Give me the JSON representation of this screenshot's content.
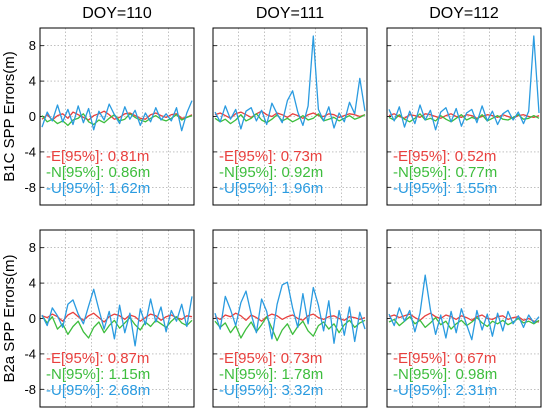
{
  "colors": {
    "E": "#e8403e",
    "N": "#3dbd3d",
    "U": "#2a9be0"
  },
  "chart_data": {
    "type": "line",
    "grid": true,
    "columns": [
      "DOY=110",
      "DOY=111",
      "DOY=112"
    ],
    "rows": [
      "B1C SPP Errors(m)",
      "B2a SPP Errors(m)"
    ],
    "ylim": [
      -10,
      10
    ],
    "yticks": [
      "8",
      "4",
      "0",
      "-4",
      "-8"
    ],
    "ytick_values": [
      8,
      4,
      0,
      -4,
      -8
    ],
    "series_names": [
      "E",
      "N",
      "U"
    ],
    "panels": [
      {
        "row": 0,
        "col": 0,
        "stats": [
          "-E[95%]: 0.81m",
          "-N[95%]: 0.86m",
          "-U[95%]: 1.62m"
        ],
        "series": [
          {
            "name": "E",
            "values": [
              -0.3,
              0.2,
              -0.4,
              0.1,
              0.3,
              -0.2,
              0.5,
              0.2,
              -0.1,
              -0.4,
              0.1,
              0.3,
              0.6,
              0.2,
              -0.3,
              -0.1,
              0.3,
              0.4,
              0.1,
              -0.2,
              -0.3,
              0.2,
              0.4,
              0.1,
              -0.1,
              0.2,
              0.3,
              -0.2,
              -0.1,
              0.2
            ]
          },
          {
            "name": "N",
            "values": [
              0.1,
              -0.6,
              -0.3,
              -0.8,
              -0.5,
              -1.0,
              -0.4,
              -0.2,
              0.3,
              -0.6,
              -0.9,
              -0.4,
              -0.7,
              -0.2,
              0.2,
              -0.5,
              -0.3,
              0.3,
              -0.1,
              -0.4,
              -0.6,
              -0.2,
              0.1,
              -0.3,
              -0.5,
              -0.2,
              0.2,
              -0.4,
              -0.1,
              0.1
            ]
          },
          {
            "name": "U",
            "values": [
              -1.2,
              0.5,
              -0.5,
              1.3,
              -0.6,
              0.8,
              -0.9,
              1.2,
              -0.7,
              0.9,
              -1.5,
              0.6,
              -0.4,
              1.4,
              0.2,
              -0.8,
              1.1,
              -0.3,
              0.7,
              -1.0,
              0.4,
              -0.6,
              1.0,
              -0.4,
              0.3,
              -0.5,
              1.0,
              -1.6,
              0.4,
              1.8
            ]
          }
        ]
      },
      {
        "row": 0,
        "col": 1,
        "stats": [
          "-E[95%]: 0.73m",
          "-N[95%]: 0.92m",
          "-U[95%]: 1.96m"
        ],
        "series": [
          {
            "name": "E",
            "values": [
              0.2,
              0.4,
              0.1,
              -0.2,
              0.3,
              0.5,
              0.2,
              -0.1,
              0.3,
              0.6,
              0.2,
              0.0,
              0.4,
              0.2,
              -0.1,
              0.3,
              0.1,
              -0.2,
              0.2,
              0.4,
              0.1,
              0.0,
              0.3,
              0.2,
              -0.1,
              0.1,
              0.3,
              0.2,
              0.0,
              0.2
            ]
          },
          {
            "name": "N",
            "values": [
              -0.2,
              -0.6,
              -0.3,
              -0.8,
              -0.4,
              0.2,
              -0.5,
              -0.2,
              0.3,
              -0.4,
              -0.7,
              -0.3,
              0.2,
              -0.5,
              -0.2,
              -0.6,
              -0.3,
              0.1,
              -0.4,
              -0.2,
              0.3,
              -0.5,
              -0.3,
              -0.1,
              -0.5,
              -0.2,
              0.1,
              -0.3,
              -0.1,
              0.2
            ]
          },
          {
            "name": "U",
            "values": [
              0.5,
              -0.6,
              1.2,
              -0.3,
              0.8,
              -1.4,
              0.6,
              1.0,
              -0.5,
              0.7,
              -0.9,
              1.5,
              0.3,
              -0.7,
              1.8,
              2.9,
              0.5,
              -1.0,
              1.2,
              9.1,
              0.8,
              -0.5,
              1.1,
              -1.3,
              0.4,
              -0.6,
              1.6,
              0.3,
              4.3,
              0.6
            ]
          }
        ]
      },
      {
        "row": 0,
        "col": 2,
        "stats": [
          "-E[95%]: 0.52m",
          "-N[95%]: 0.77m",
          "-U[95%]: 1.55m"
        ],
        "series": [
          {
            "name": "E",
            "values": [
              0.1,
              0.3,
              0.0,
              -0.2,
              0.2,
              0.1,
              -0.1,
              0.3,
              0.2,
              0.0,
              -0.2,
              0.1,
              0.3,
              0.0,
              -0.1,
              0.2,
              0.1,
              -0.2,
              0.0,
              0.2,
              0.1,
              -0.1,
              0.2,
              0.0,
              -0.2,
              0.1,
              0.2,
              0.0,
              -0.1,
              0.1
            ]
          },
          {
            "name": "N",
            "values": [
              -0.1,
              -0.4,
              0.2,
              -0.3,
              -0.6,
              -0.2,
              0.3,
              -0.4,
              -0.2,
              -0.5,
              0.1,
              -0.3,
              -0.6,
              -0.2,
              0.2,
              -0.4,
              -0.1,
              -0.3,
              0.2,
              -0.5,
              -0.2,
              0.1,
              -0.3,
              -0.4,
              -0.1,
              0.2,
              -0.3,
              -0.2,
              0.1,
              -0.2
            ]
          },
          {
            "name": "U",
            "values": [
              0.8,
              -0.5,
              1.1,
              -1.2,
              0.6,
              -0.8,
              1.3,
              -0.4,
              0.7,
              -1.5,
              0.5,
              1.0,
              -0.6,
              0.9,
              -1.1,
              0.4,
              0.8,
              -0.7,
              1.2,
              -0.5,
              0.6,
              -0.9,
              0.3,
              0.7,
              -0.4,
              0.5,
              -0.8,
              0.6,
              9.1,
              0.4
            ]
          }
        ]
      },
      {
        "row": 1,
        "col": 0,
        "stats": [
          "-E[95%]: 0.87m",
          "-N[95%]: 1.15m",
          "-U[95%]: 2.68m"
        ],
        "series": [
          {
            "name": "E",
            "values": [
              0.3,
              0.1,
              0.5,
              0.2,
              -0.3,
              0.4,
              0.7,
              0.2,
              -0.2,
              0.3,
              0.6,
              0.1,
              -0.4,
              0.2,
              0.5,
              0.3,
              -0.1,
              0.4,
              0.2,
              -0.3,
              0.1,
              0.5,
              0.3,
              -0.2,
              0.2,
              0.4,
              0.1,
              -0.1,
              0.3,
              0.2
            ]
          },
          {
            "name": "N",
            "values": [
              0.3,
              -0.5,
              0.2,
              -1.2,
              -0.6,
              -1.8,
              -0.9,
              -0.3,
              -1.5,
              -2.2,
              -1.0,
              -0.4,
              -1.6,
              -0.8,
              -0.2,
              -1.1,
              -0.5,
              0.1,
              -0.7,
              -1.3,
              -0.4,
              -0.9,
              -0.2,
              -0.6,
              -1.0,
              -0.3,
              0.2,
              -0.5,
              -0.8,
              -0.2
            ]
          },
          {
            "name": "U",
            "values": [
              0.4,
              -0.8,
              1.2,
              0.3,
              -1.0,
              1.6,
              2.1,
              0.5,
              -0.6,
              1.4,
              3.3,
              1.0,
              -1.2,
              0.8,
              -2.3,
              1.5,
              -1.6,
              0.6,
              -3.1,
              1.1,
              -0.7,
              2.2,
              -0.4,
              1.3,
              -1.5,
              0.9,
              -0.3,
              1.6,
              -0.9,
              2.5
            ]
          }
        ]
      },
      {
        "row": 1,
        "col": 1,
        "stats": [
          "-E[95%]: 0.73m",
          "-N[95%]: 1.78m",
          "-U[95%]: 3.32m"
        ],
        "series": [
          {
            "name": "E",
            "values": [
              0.2,
              -0.1,
              0.4,
              0.2,
              0.6,
              0.3,
              -0.2,
              0.4,
              0.1,
              -0.3,
              0.2,
              0.5,
              0.3,
              -0.1,
              0.2,
              0.4,
              0.0,
              -0.2,
              0.3,
              0.5,
              0.1,
              -0.1,
              0.2,
              0.3,
              0.0,
              -0.2,
              0.2,
              0.1,
              -0.1,
              0.1
            ]
          },
          {
            "name": "N",
            "values": [
              -0.3,
              -1.0,
              -0.5,
              -1.6,
              -0.8,
              -2.2,
              -1.2,
              -0.4,
              -1.5,
              -0.7,
              0.2,
              -1.1,
              -2.5,
              -1.3,
              -0.6,
              -1.8,
              -0.9,
              -0.3,
              -1.4,
              -2.0,
              -0.8,
              -0.4,
              -1.2,
              -0.6,
              -1.6,
              -0.7,
              -0.2,
              -1.0,
              -0.5,
              -0.2
            ]
          },
          {
            "name": "U",
            "values": [
              0.6,
              -1.2,
              2.5,
              1.0,
              -0.8,
              1.8,
              3.1,
              0.5,
              -1.6,
              2.2,
              0.8,
              -2.3,
              1.6,
              3.8,
              4.1,
              1.2,
              -1.0,
              2.8,
              -0.6,
              3.5,
              1.5,
              -1.4,
              2.0,
              -2.8,
              0.9,
              -1.9,
              1.3,
              -2.6,
              0.7,
              -1.2
            ]
          }
        ]
      },
      {
        "row": 1,
        "col": 2,
        "stats": [
          "-E[95%]: 0.67m",
          "-N[95%]: 0.98m",
          "-U[95%]: 2.31m"
        ],
        "series": [
          {
            "name": "E",
            "values": [
              0.2,
              0.4,
              0.1,
              0.3,
              0.5,
              0.1,
              -0.2,
              0.3,
              0.6,
              0.2,
              0.0,
              0.4,
              0.2,
              -0.1,
              0.3,
              0.1,
              -0.2,
              0.2,
              0.4,
              0.0,
              -0.1,
              0.2,
              0.3,
              -0.1,
              0.1,
              0.2,
              -0.2,
              0.0,
              -0.3,
              -0.4
            ]
          },
          {
            "name": "N",
            "values": [
              -0.4,
              -0.1,
              -0.8,
              -0.3,
              0.2,
              -0.6,
              -0.2,
              -1.0,
              -0.5,
              0.1,
              -0.7,
              -0.3,
              -1.2,
              -0.6,
              -0.2,
              -0.8,
              -0.4,
              0.1,
              -0.5,
              -0.9,
              -0.3,
              -0.6,
              -0.2,
              -0.7,
              -0.4,
              0.0,
              -0.5,
              -0.3,
              -0.6,
              -0.2
            ]
          },
          {
            "name": "U",
            "values": [
              0.5,
              -0.8,
              1.2,
              -0.3,
              0.9,
              -1.5,
              0.6,
              4.9,
              1.0,
              -1.8,
              0.4,
              -2.2,
              0.8,
              -1.6,
              1.1,
              -0.7,
              -2.4,
              0.9,
              -1.3,
              0.5,
              -2.0,
              0.6,
              -1.4,
              0.8,
              -0.6,
              0.3,
              -1.0,
              0.4,
              -0.5,
              0.2
            ]
          }
        ]
      }
    ]
  }
}
